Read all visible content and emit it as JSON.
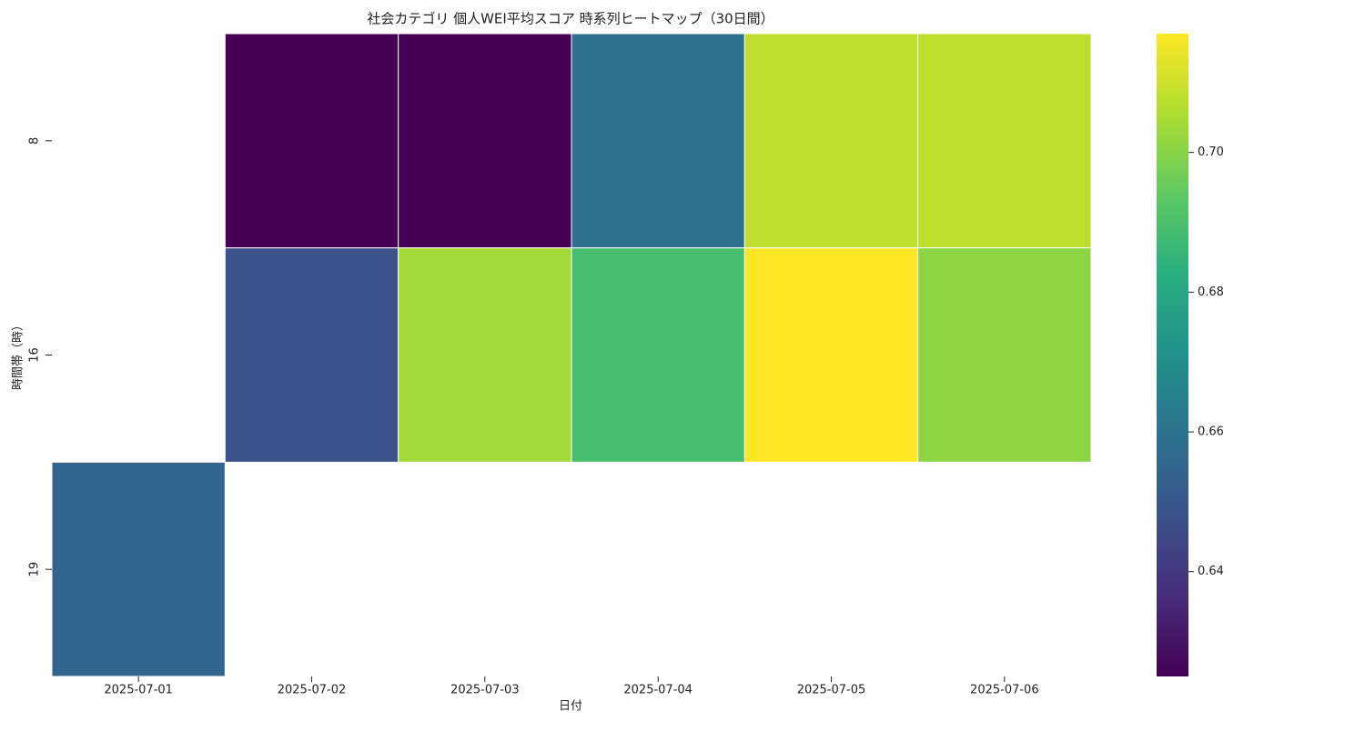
{
  "chart_data": {
    "type": "heatmap",
    "title": "社会カテゴリ 個人WEI平均スコア 時系列ヒートマップ（30日間）",
    "x_label": "日付",
    "y_label": "時間帯（時）",
    "categories": [
      "2025-07-01",
      "2025-07-02",
      "2025-07-03",
      "2025-07-04",
      "2025-07-05",
      "2025-07-06"
    ],
    "rows": [
      "8",
      "16",
      "19"
    ],
    "values": [
      [
        null,
        0.625,
        0.625,
        0.659,
        0.708,
        0.708
      ],
      [
        null,
        0.648,
        0.704,
        0.689,
        0.717,
        0.701
      ],
      [
        0.655,
        null,
        null,
        null,
        null,
        null
      ]
    ],
    "colormap": "viridis",
    "vlim": [
      0.625,
      0.717
    ],
    "colorbar_ticks": [
      0.64,
      0.66,
      0.68,
      {
        "value": 0.7,
        "label": "0.70"
      }
    ]
  }
}
